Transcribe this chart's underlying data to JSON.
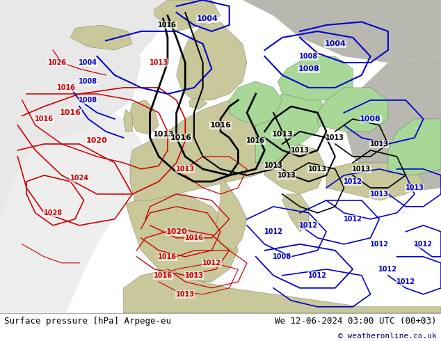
{
  "title_left": "Surface pressure [hPa] Arpege-eu",
  "title_right": "We 12-06-2024 03:00 UTC (00+03)",
  "copyright": "© weatheronline.co.uk",
  "fig_width": 6.34,
  "fig_height": 4.9,
  "dpi": 100,
  "bg_color": "#ffffff",
  "land_color": "#c8c89a",
  "sea_color": "#a0b8d0",
  "green_color": "#a8d898",
  "white_area": "#e8e8e8",
  "grey_area": "#b8b8b0",
  "red_color": "#cc0000",
  "blue_color": "#0000cc",
  "black_color": "#000000",
  "bottom_text_color": "#000000",
  "copyright_color": "#000080",
  "font_size_bottom": 9,
  "font_size_copyright": 8
}
